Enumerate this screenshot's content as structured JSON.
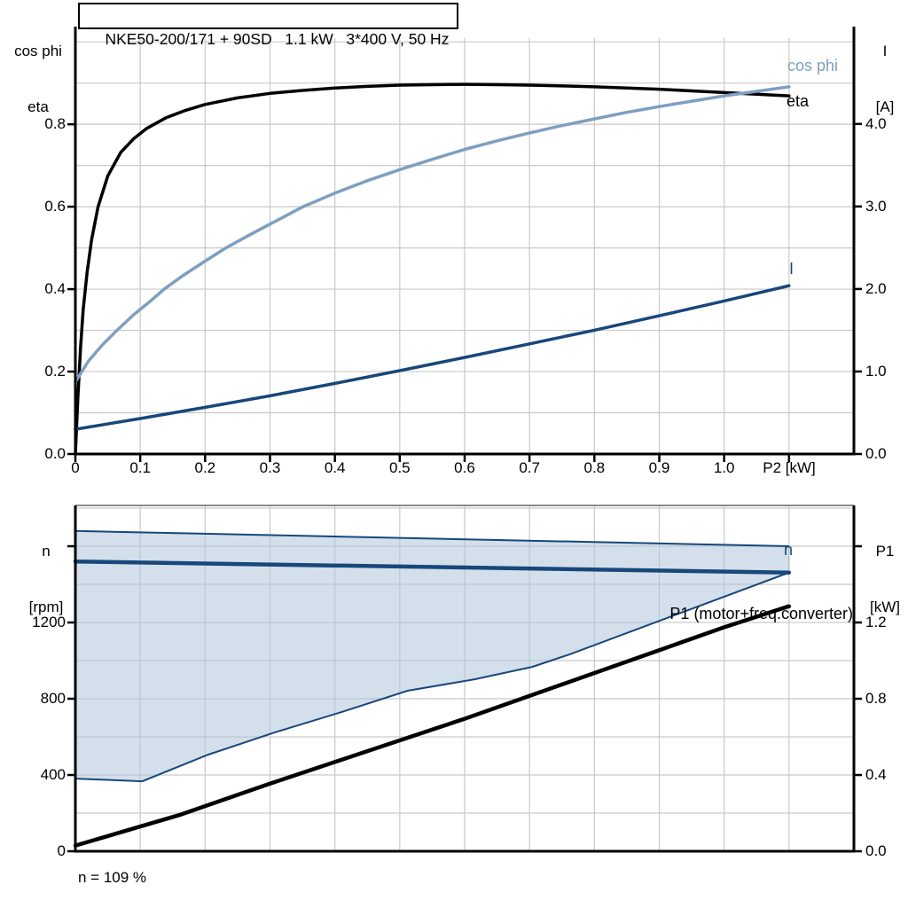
{
  "header": {
    "title": "NKE50-200/171 + 90SD   1.1 kW   3*400 V, 50 Hz"
  },
  "footer": {
    "note": "n = 109 %"
  },
  "axis_titles": {
    "top_left_line1": "cos phi",
    "top_left_line2": "eta",
    "top_right_line1": "I",
    "top_right_line2": "[A]",
    "bottom_left_line1": "n",
    "bottom_left_line2": "[rpm]",
    "bottom_right_line1": "P1",
    "bottom_right_line2": "[kW]"
  },
  "curve_labels": {
    "cos_phi": "cos phi",
    "eta": "eta",
    "current": "I",
    "speed": "n",
    "p1": "P1 (motor+freq.converter)"
  },
  "colors": {
    "eta": "#000000",
    "cos_phi": "#7d9fc0",
    "navy": "#17477b",
    "p1": "#000000",
    "band_fill": "rgba(174,196,219,0.55)",
    "band_edge": "#9fb3c8",
    "grid": "#c9c9c9",
    "axis": "#000000",
    "chart_top_border": "#666666"
  },
  "chart_data": [
    {
      "id": "top-chart",
      "type": "line",
      "x": {
        "label": "P2 [kW]",
        "min": 0,
        "max": 1.2,
        "grid_step": 0.1,
        "ticks": [
          {
            "v": 0,
            "label": "0"
          },
          {
            "v": 0.1,
            "label": "0.1"
          },
          {
            "v": 0.2,
            "label": "0.2"
          },
          {
            "v": 0.3,
            "label": "0.3"
          },
          {
            "v": 0.4,
            "label": "0.4"
          },
          {
            "v": 0.5,
            "label": "0.5"
          },
          {
            "v": 0.6,
            "label": "0.6"
          },
          {
            "v": 0.7,
            "label": "0.7"
          },
          {
            "v": 0.8,
            "label": "0.8"
          },
          {
            "v": 0.9,
            "label": "0.9"
          },
          {
            "v": 1.0,
            "label": "1.0"
          },
          {
            "v": 1.1,
            "label": ""
          }
        ]
      },
      "y_left": {
        "title": "cos phi, eta",
        "min": 0,
        "max": 1.037,
        "grid_step": 0.1,
        "ticks": [
          {
            "v": 0,
            "label": "0.0"
          },
          {
            "v": 0.2,
            "label": "0.2"
          },
          {
            "v": 0.4,
            "label": "0.4"
          },
          {
            "v": 0.6,
            "label": "0.6"
          },
          {
            "v": 0.8,
            "label": "0.8"
          }
        ]
      },
      "y_right": {
        "title": "I [A]",
        "min": 0,
        "max": 5.18,
        "ticks": [
          {
            "v": 0,
            "label": "0.0"
          },
          {
            "v": 1,
            "label": "1.0"
          },
          {
            "v": 2,
            "label": "2.0"
          },
          {
            "v": 3,
            "label": "3.0"
          },
          {
            "v": 4,
            "label": "4.0"
          }
        ]
      },
      "series": [
        {
          "name": "eta",
          "axis": "left",
          "color_key": "eta",
          "width": 3.5,
          "points": [
            [
              0,
              0
            ],
            [
              0.004,
              0.14
            ],
            [
              0.008,
              0.26
            ],
            [
              0.012,
              0.35
            ],
            [
              0.018,
              0.44
            ],
            [
              0.025,
              0.52
            ],
            [
              0.035,
              0.6
            ],
            [
              0.05,
              0.675
            ],
            [
              0.07,
              0.732
            ],
            [
              0.09,
              0.765
            ],
            [
              0.11,
              0.79
            ],
            [
              0.14,
              0.816
            ],
            [
              0.17,
              0.834
            ],
            [
              0.2,
              0.848
            ],
            [
              0.25,
              0.864
            ],
            [
              0.3,
              0.875
            ],
            [
              0.35,
              0.882
            ],
            [
              0.4,
              0.888
            ],
            [
              0.45,
              0.892
            ],
            [
              0.5,
              0.895
            ],
            [
              0.55,
              0.896
            ],
            [
              0.6,
              0.897
            ],
            [
              0.65,
              0.896
            ],
            [
              0.7,
              0.895
            ],
            [
              0.75,
              0.893
            ],
            [
              0.8,
              0.891
            ],
            [
              0.85,
              0.888
            ],
            [
              0.9,
              0.885
            ],
            [
              0.95,
              0.881
            ],
            [
              1.0,
              0.877
            ],
            [
              1.05,
              0.873
            ],
            [
              1.1,
              0.869
            ]
          ]
        },
        {
          "name": "cos phi",
          "axis": "left",
          "color_key": "cos_phi",
          "width": 3.5,
          "points": [
            [
              0,
              0.175
            ],
            [
              0.02,
              0.225
            ],
            [
              0.04,
              0.262
            ],
            [
              0.064,
              0.3
            ],
            [
              0.09,
              0.338
            ],
            [
              0.115,
              0.37
            ],
            [
              0.137,
              0.4
            ],
            [
              0.165,
              0.432
            ],
            [
              0.2,
              0.468
            ],
            [
              0.232,
              0.5
            ],
            [
              0.27,
              0.533
            ],
            [
              0.31,
              0.566
            ],
            [
              0.351,
              0.6
            ],
            [
              0.4,
              0.633
            ],
            [
              0.45,
              0.663
            ],
            [
              0.5,
              0.69
            ],
            [
              0.55,
              0.715
            ],
            [
              0.6,
              0.739
            ],
            [
              0.65,
              0.76
            ],
            [
              0.7,
              0.779
            ],
            [
              0.75,
              0.797
            ],
            [
              0.8,
              0.813
            ],
            [
              0.85,
              0.829
            ],
            [
              0.9,
              0.843
            ],
            [
              0.95,
              0.856
            ],
            [
              1.0,
              0.869
            ],
            [
              1.05,
              0.88
            ],
            [
              1.1,
              0.891
            ]
          ]
        },
        {
          "name": "I",
          "axis": "right",
          "color_key": "navy",
          "width": 3.5,
          "points": [
            [
              0,
              0.3
            ],
            [
              0.1,
              0.43
            ],
            [
              0.2,
              0.565
            ],
            [
              0.3,
              0.705
            ],
            [
              0.4,
              0.855
            ],
            [
              0.5,
              1.01
            ],
            [
              0.6,
              1.17
            ],
            [
              0.7,
              1.335
            ],
            [
              0.8,
              1.5
            ],
            [
              0.9,
              1.675
            ],
            [
              1.0,
              1.855
            ],
            [
              1.1,
              2.04
            ]
          ]
        }
      ]
    },
    {
      "id": "bottom-chart",
      "type": "line-with-band",
      "x": {
        "label": "",
        "min": 0,
        "max": 1.2,
        "grid_step": 0.1,
        "ticks": []
      },
      "y_left": {
        "title": "n [rpm]",
        "min": 0,
        "max": 1814,
        "grid_step": 200,
        "ticks": [
          {
            "v": 0,
            "label": "0"
          },
          {
            "v": 400,
            "label": "400"
          },
          {
            "v": 800,
            "label": "800"
          },
          {
            "v": 1200,
            "label": "1200"
          },
          {
            "v": 1600,
            "label": ""
          }
        ]
      },
      "y_right": {
        "title": "P1 [kW]",
        "min": 0,
        "max": 1.814,
        "ticks": [
          {
            "v": 0,
            "label": "0.0"
          },
          {
            "v": 0.4,
            "label": "0.4"
          },
          {
            "v": 0.8,
            "label": "0.8"
          },
          {
            "v": 1.2,
            "label": "1.2"
          },
          {
            "v": 1.6,
            "label": ""
          }
        ]
      },
      "band": {
        "name": "speed control range",
        "axis": "left",
        "upper": [
          [
            0,
            1680
          ],
          [
            1.1,
            1600
          ]
        ],
        "lower": [
          [
            0,
            381
          ],
          [
            0.103,
            367
          ],
          [
            0.205,
            507
          ],
          [
            0.307,
            623
          ],
          [
            0.41,
            730
          ],
          [
            0.512,
            842
          ],
          [
            0.615,
            902
          ],
          [
            0.704,
            967
          ],
          [
            0.762,
            1033
          ],
          [
            1.1,
            1462
          ]
        ]
      },
      "series": [
        {
          "name": "n",
          "axis": "left",
          "color_key": "navy",
          "width": 4.5,
          "points": [
            [
              0,
              1520
            ],
            [
              1.1,
              1462
            ]
          ]
        },
        {
          "name": "P1 (motor+freq.converter)",
          "axis": "right",
          "color_key": "p1",
          "width": 4.5,
          "points": [
            [
              0,
              0.03
            ],
            [
              0.16,
              0.19
            ],
            [
              0.3,
              0.355
            ],
            [
              0.45,
              0.525
            ],
            [
              0.6,
              0.695
            ],
            [
              0.75,
              0.875
            ],
            [
              0.9,
              1.055
            ],
            [
              1.0,
              1.175
            ],
            [
              1.1,
              1.285
            ]
          ]
        }
      ]
    }
  ]
}
